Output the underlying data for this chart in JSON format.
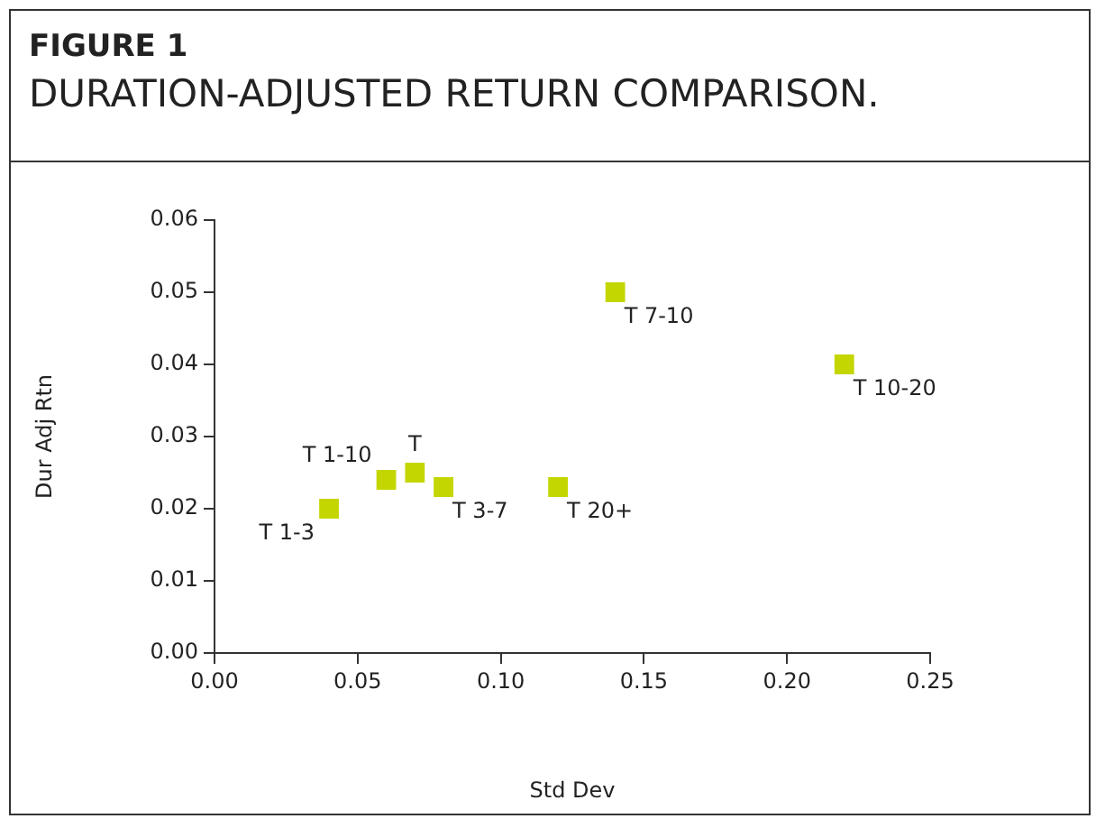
{
  "chart_data": {
    "type": "scatter",
    "title": "FIGURE 1",
    "subtitle": "DURATION-ADJUSTED RETURN COMPARISON.",
    "xlabel": "Std Dev",
    "ylabel": "Dur Adj Rtn",
    "x": [
      0.04,
      0.06,
      0.07,
      0.08,
      0.12,
      0.14,
      0.22
    ],
    "series": [
      {
        "color": "#c4d600",
        "values": [
          0.02,
          0.024,
          0.025,
          0.023,
          0.023,
          0.05,
          0.04
        ]
      }
    ],
    "xlim": [
      0,
      0.25
    ],
    "xticks": [
      {
        "value": 0,
        "label": "0.00"
      },
      0.05,
      {
        "value": 0.1,
        "label": "0.10"
      },
      0.15,
      {
        "value": 0.2,
        "label": "0.20"
      },
      0.25
    ],
    "ylim": [
      0,
      0.06
    ],
    "yticks": [
      {
        "value": 0,
        "label": "0.00"
      },
      0.01,
      0.02,
      0.03,
      0.04,
      0.05,
      0.06
    ],
    "marker": "square",
    "grid": false,
    "legend": false,
    "annotations": [
      {
        "text": "T 1-3",
        "x": 0.04,
        "y": 0.02
      },
      {
        "text": "T 1-10",
        "x": 0.06,
        "y": 0.024
      },
      {
        "text": "T",
        "x": 0.07,
        "y": 0.025
      },
      {
        "text": "T 3-7",
        "x": 0.08,
        "y": 0.023
      },
      {
        "text": "T 20+",
        "x": 0.12,
        "y": 0.023
      },
      {
        "text": "T 7-10",
        "x": 0.14,
        "y": 0.05
      },
      {
        "text": "T 10-20",
        "x": 0.22,
        "y": 0.04
      }
    ]
  }
}
